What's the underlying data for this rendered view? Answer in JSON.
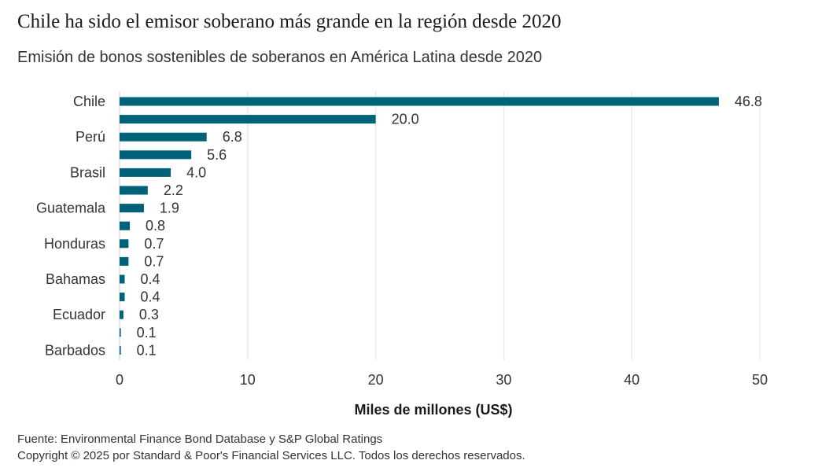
{
  "title": "Chile ha sido el emisor soberano más grande en la región desde 2020",
  "subtitle": "Emisión de bonos sostenibles de soberanos en América Latina desde 2020",
  "source": "Fuente: Environmental Finance Bond Database y S&P Global Ratings",
  "copyright": "Copyright © 2025 por Standard & Poor's Financial Services LLC. Todos los derechos reservados.",
  "colors": {
    "bar": "#006279",
    "grid": "#e3e3e3"
  },
  "chart_data": {
    "type": "bar",
    "orientation": "horizontal",
    "categories": [
      "Chile",
      "",
      "Perú",
      "",
      "Brasil",
      "",
      "Guatemala",
      "",
      "Honduras",
      "",
      "Bahamas",
      "",
      "Ecuador",
      "",
      "Barbados"
    ],
    "values": [
      46.8,
      20.0,
      6.8,
      5.6,
      4.0,
      2.2,
      1.9,
      0.8,
      0.7,
      0.7,
      0.4,
      0.4,
      0.3,
      0.1,
      0.1
    ],
    "value_labels": [
      "46.8",
      "20.0",
      "6.8",
      "5.6",
      "4.0",
      "2.2",
      "1.9",
      "0.8",
      "0.7",
      "0.7",
      "0.4",
      "0.4",
      "0.3",
      "0.1",
      "0.1"
    ],
    "xlabel": "Miles de millones (US$)",
    "ylabel": "",
    "xlim": [
      0,
      50
    ],
    "xticks": [
      0,
      10,
      20,
      30,
      40,
      50
    ],
    "grid": true,
    "legend": "none"
  }
}
